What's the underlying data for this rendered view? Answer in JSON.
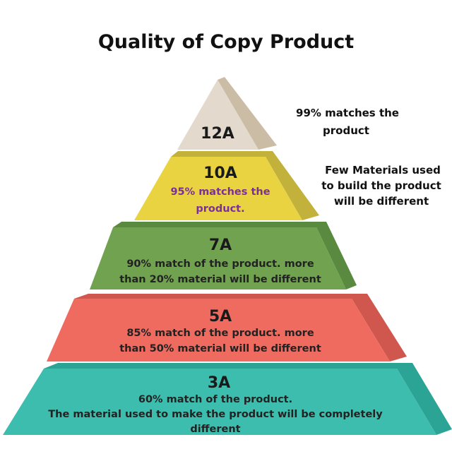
{
  "title": "Quality of Copy Product",
  "levels": [
    {
      "label": "12A",
      "front_color": "#e3dacd",
      "side_color": "#cbbca6",
      "side_note": [
        "99%  matches the",
        "product"
      ]
    },
    {
      "label": "10A",
      "front_color": "#e9d341",
      "side_color": "#c2b13b",
      "lines": [
        "95% matches the",
        "product."
      ],
      "text_color": "#7b2f9b",
      "side_note": [
        "Few Materials used",
        "to build the product",
        "will be different"
      ]
    },
    {
      "label": "7A",
      "front_color": "#70a24f",
      "side_color": "#5a8a3f",
      "lines": [
        "90% match of the product. more",
        "than 20% material will be different"
      ]
    },
    {
      "label": "5A",
      "front_color": "#ef6b60",
      "side_color": "#d0574e",
      "lines": [
        "85% match of the product. more",
        "than 50% material will be different"
      ]
    },
    {
      "label": "3A",
      "front_color": "#3cbdae",
      "side_color": "#2ba496",
      "lines": [
        "60% match of the product.",
        "The material used to make the product will be completely",
        "different"
      ]
    }
  ]
}
